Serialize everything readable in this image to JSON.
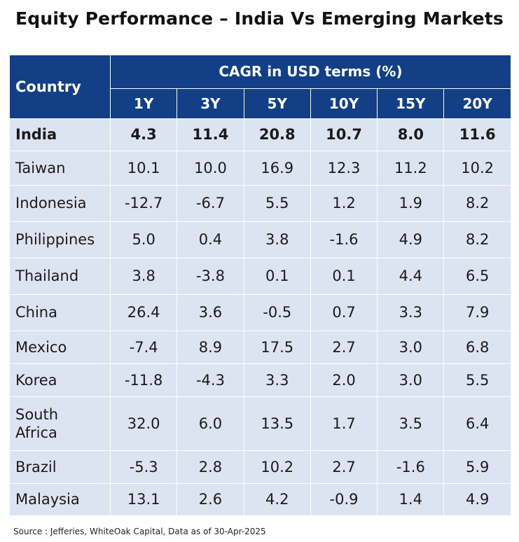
{
  "title": "Equity Performance – India Vs Emerging Markets",
  "source": "Source : Jefferies, WhiteOak Capital, Data as of 30-Apr-2025",
  "colors": {
    "header_bg": "#123f86",
    "header_text": "#ffffff",
    "cell_bg": "#dde4f1"
  },
  "chart_data": {
    "type": "table",
    "row_header_label": "Country",
    "group_label": "CAGR in USD terms (%)",
    "columns": [
      "1Y",
      "3Y",
      "5Y",
      "10Y",
      "15Y",
      "20Y"
    ],
    "rows": [
      {
        "country": "India",
        "bold": true,
        "values": [
          "4.3",
          "11.4",
          "20.8",
          "10.7",
          "8.0",
          "11.6"
        ]
      },
      {
        "country": "Taiwan",
        "values": [
          "10.1",
          "10.0",
          "16.9",
          "12.3",
          "11.2",
          "10.2"
        ]
      },
      {
        "country": "Indonesia",
        "values": [
          "-12.7",
          "-6.7",
          "5.5",
          "1.2",
          "1.9",
          "8.2"
        ]
      },
      {
        "country": "Philippines",
        "values": [
          "5.0",
          "0.4",
          "3.8",
          "-1.6",
          "4.9",
          "8.2"
        ]
      },
      {
        "country": "Thailand",
        "values": [
          "3.8",
          "-3.8",
          "0.1",
          "0.1",
          "4.4",
          "6.5"
        ]
      },
      {
        "country": "China",
        "values": [
          "26.4",
          "3.6",
          "-0.5",
          "0.7",
          "3.3",
          "7.9"
        ]
      },
      {
        "country": "Mexico",
        "values": [
          "-7.4",
          "8.9",
          "17.5",
          "2.7",
          "3.0",
          "6.8"
        ]
      },
      {
        "country": "Korea",
        "values": [
          "-11.8",
          "-4.3",
          "3.3",
          "2.0",
          "3.0",
          "5.5"
        ]
      },
      {
        "country": "South Africa",
        "values": [
          "32.0",
          "6.0",
          "13.5",
          "1.7",
          "3.5",
          "6.4"
        ]
      },
      {
        "country": "Brazil",
        "values": [
          "-5.3",
          "2.8",
          "10.2",
          "2.7",
          "-1.6",
          "5.9"
        ]
      },
      {
        "country": "Malaysia",
        "values": [
          "13.1",
          "2.6",
          "4.2",
          "-0.9",
          "1.4",
          "4.9"
        ]
      }
    ]
  }
}
